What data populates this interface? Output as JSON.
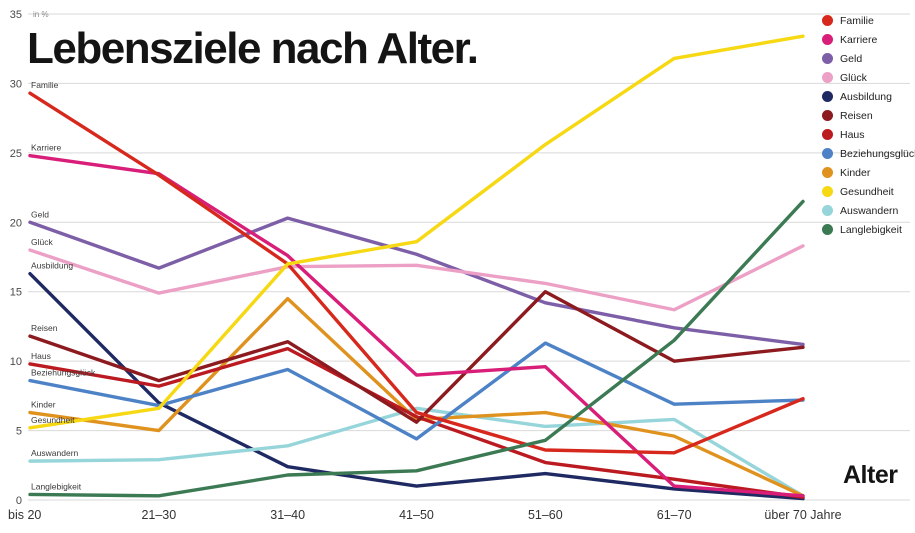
{
  "title": "Lebensziele nach Alter.",
  "x_axis_title": "Alter",
  "y_axis_unit": "in %",
  "chart_data": {
    "type": "line",
    "title": "Lebensziele nach Alter.",
    "xlabel": "Alter",
    "ylabel": "in %",
    "ylim": [
      0,
      35
    ],
    "yticks": [
      0,
      5,
      10,
      15,
      20,
      25,
      30,
      35
    ],
    "grid": true,
    "legend_position": "top-right",
    "categories": [
      "bis 20",
      "21–30",
      "31–40",
      "41–50",
      "51–60",
      "61–70",
      "über 70 Jahre"
    ],
    "series": [
      {
        "name": "Familie",
        "color": "#d7281d",
        "values": [
          29.3,
          23.4,
          17.0,
          6.3,
          3.6,
          3.4,
          7.3
        ]
      },
      {
        "name": "Karriere",
        "color": "#d81e78",
        "values": [
          24.8,
          23.5,
          17.6,
          9.0,
          9.6,
          1.0,
          0.3
        ]
      },
      {
        "name": "Geld",
        "color": "#7d5fa8",
        "values": [
          20.0,
          16.7,
          20.3,
          17.7,
          14.2,
          12.4,
          11.2
        ]
      },
      {
        "name": "Glück",
        "color": "#eca0c5",
        "values": [
          18.0,
          14.9,
          16.8,
          16.9,
          15.6,
          13.7,
          18.3
        ]
      },
      {
        "name": "Ausbildung",
        "color": "#1f2a63",
        "values": [
          16.3,
          7.0,
          2.4,
          1.0,
          1.9,
          0.8,
          0.1
        ]
      },
      {
        "name": "Reisen",
        "color": "#8c1a1e",
        "values": [
          11.8,
          8.6,
          11.4,
          5.6,
          15.0,
          10.0,
          11.0
        ]
      },
      {
        "name": "Haus",
        "color": "#bb1a21",
        "values": [
          9.8,
          8.2,
          10.9,
          6.0,
          2.7,
          1.5,
          0.2
        ]
      },
      {
        "name": "Beziehungsglück",
        "color": "#4d83c6",
        "values": [
          8.6,
          6.8,
          9.4,
          4.4,
          11.3,
          6.9,
          7.2
        ]
      },
      {
        "name": "Kinder",
        "color": "#e0921f",
        "values": [
          6.3,
          5.0,
          14.5,
          5.8,
          6.3,
          4.6,
          0.3
        ]
      },
      {
        "name": "Gesundheit",
        "color": "#f6d813",
        "values": [
          5.2,
          6.6,
          17.0,
          18.6,
          25.6,
          31.8,
          33.4
        ]
      },
      {
        "name": "Auswandern",
        "color": "#96d5da",
        "values": [
          2.8,
          2.9,
          3.9,
          6.6,
          5.3,
          5.8,
          0.3
        ]
      },
      {
        "name": "Langlebigkeit",
        "color": "#3c7a54",
        "values": [
          0.4,
          0.3,
          1.8,
          2.1,
          4.3,
          11.5,
          21.5
        ]
      }
    ],
    "draw_order": [
      "Ausbildung",
      "Geld",
      "Glück",
      "Auswandern",
      "Kinder",
      "Haus",
      "Reisen",
      "Beziehungsglück",
      "Karriere",
      "Familie",
      "Gesundheit",
      "Langlebigkeit"
    ]
  }
}
